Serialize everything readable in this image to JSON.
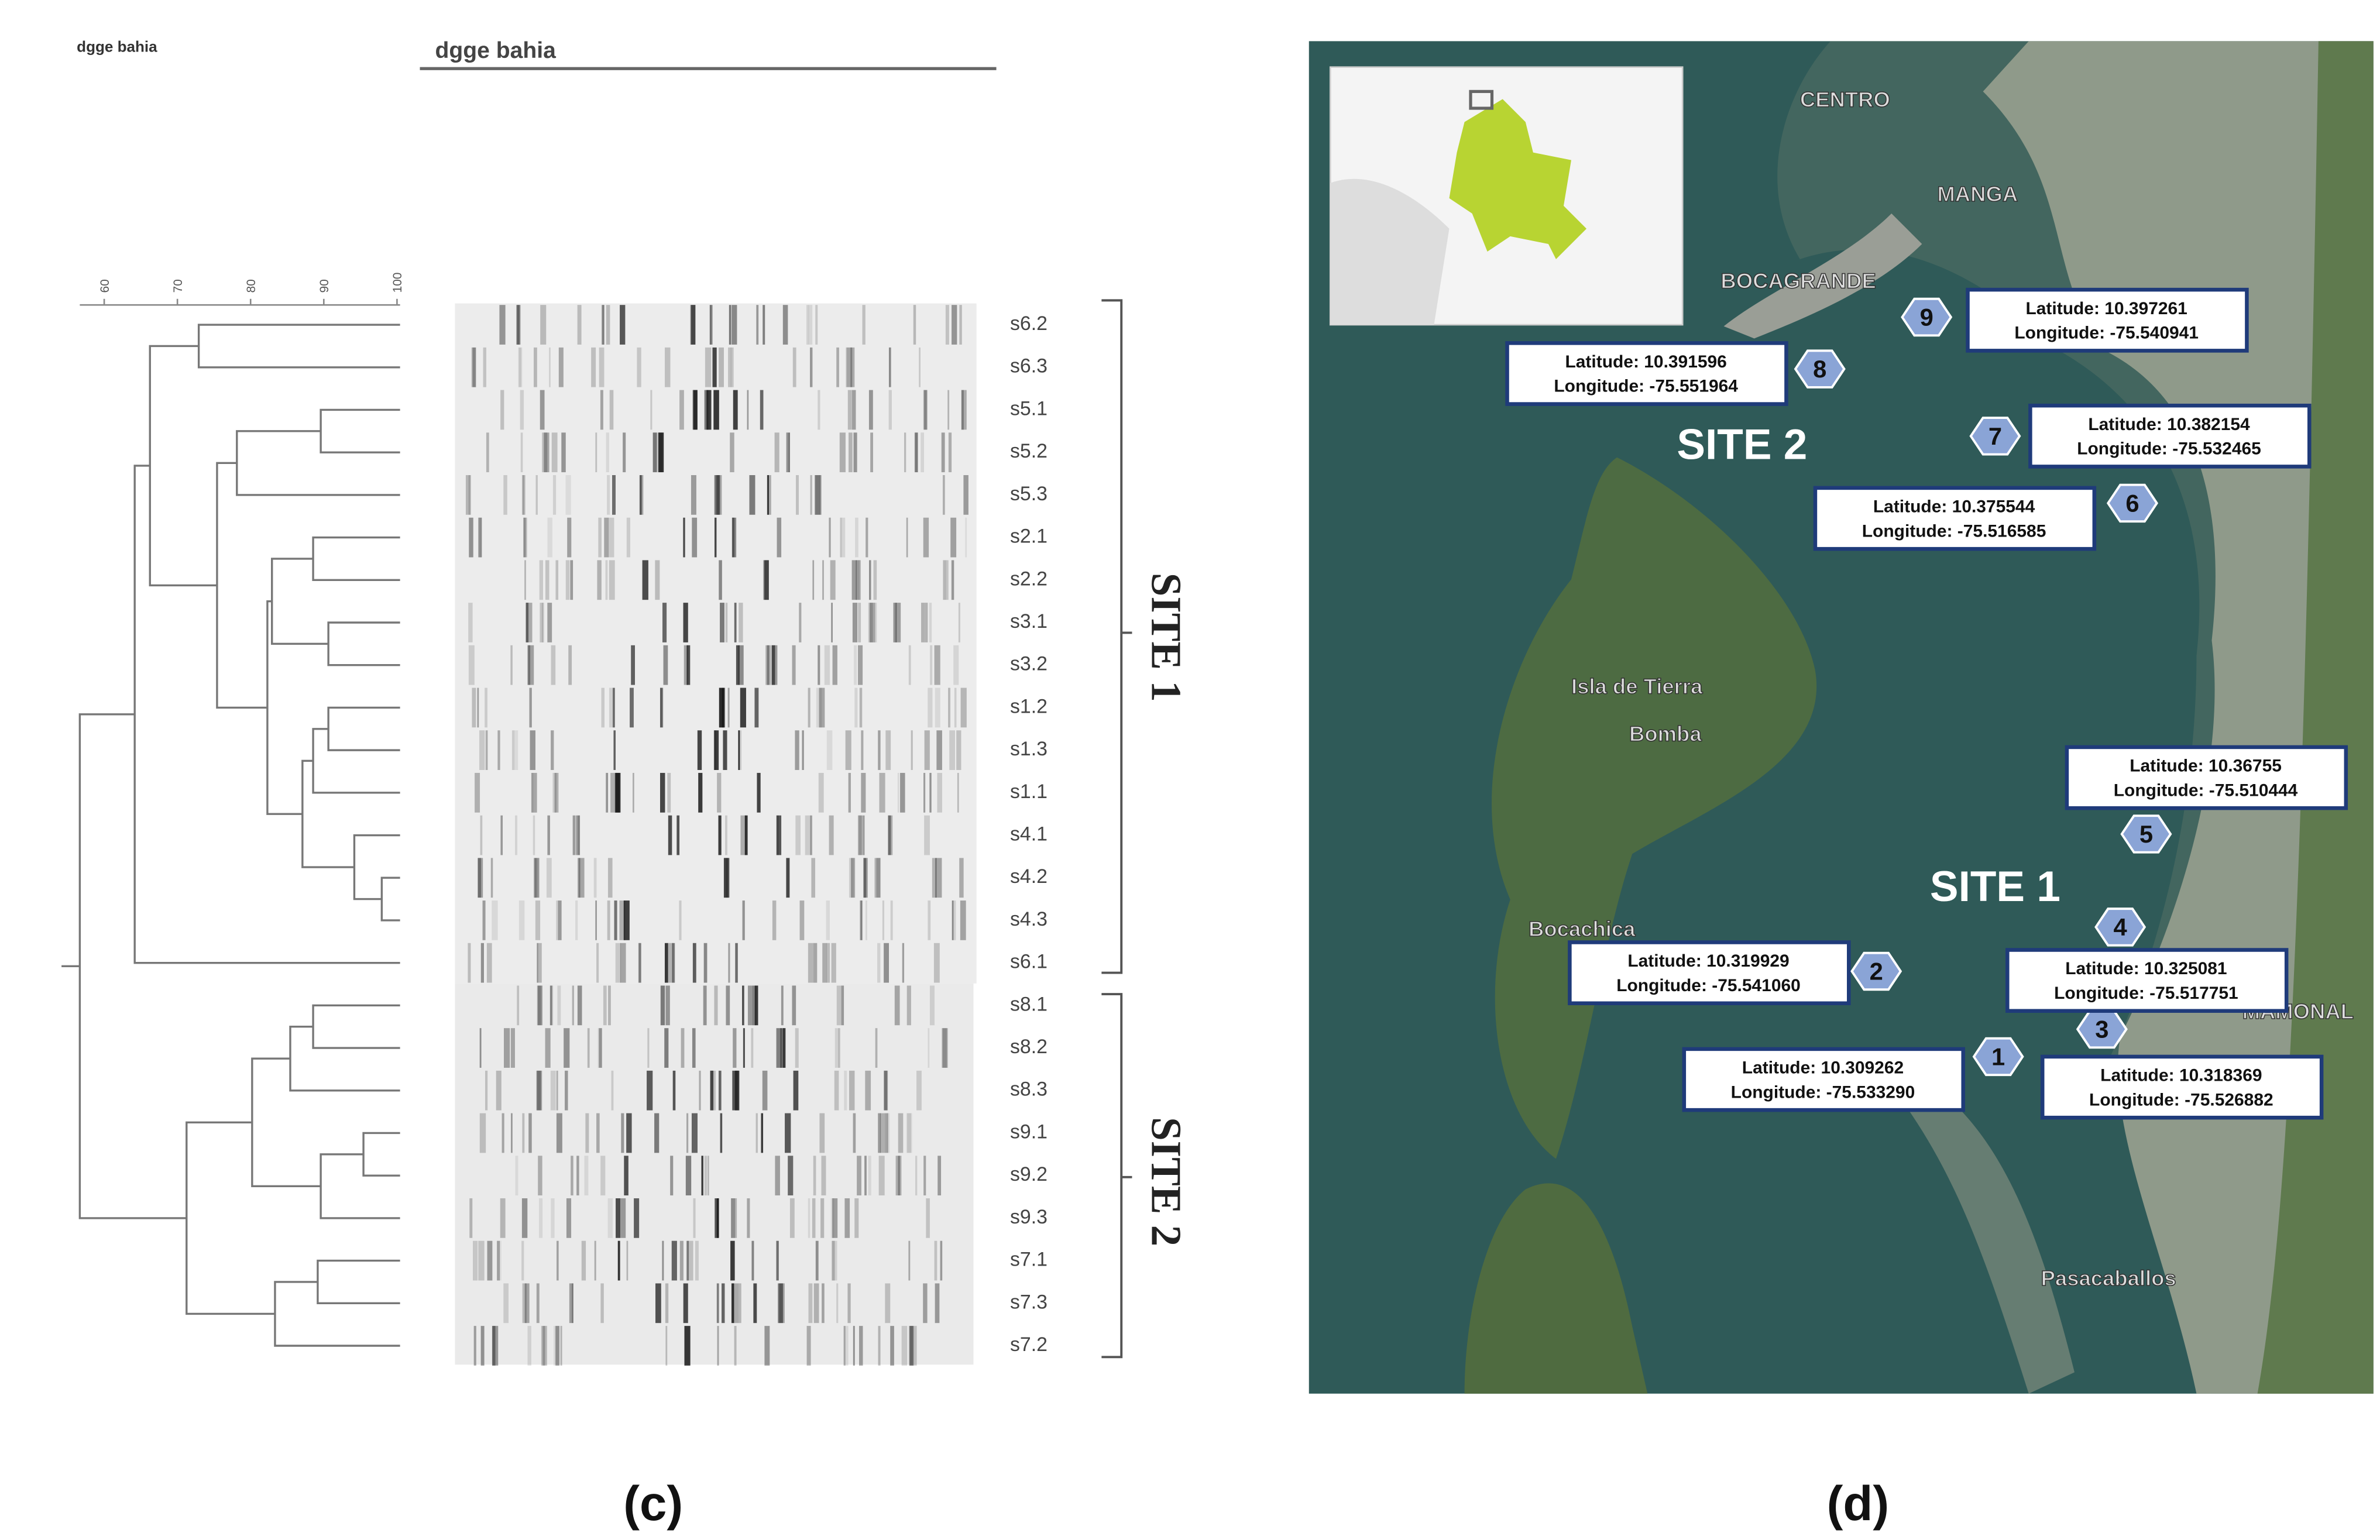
{
  "figure_c": {
    "small_title": "dgge bahia",
    "title": "dgge bahia",
    "scale": [
      60,
      70,
      80,
      90,
      100
    ],
    "lanes": [
      "s6.2",
      "s6.3",
      "s5.1",
      "s5.2",
      "s5.3",
      "s2.1",
      "s2.2",
      "s3.1",
      "s3.2",
      "s1.2",
      "s1.3",
      "s1.1",
      "s4.1",
      "s4.2",
      "s4.3",
      "s6.1",
      "s8.1",
      "s8.2",
      "s8.3",
      "s9.1",
      "s9.2",
      "s9.3",
      "s7.1",
      "s7.3",
      "s7.2"
    ],
    "groups": [
      "SITE 1",
      "SITE 2"
    ],
    "caption": "(c)"
  },
  "figure_d": {
    "places": [
      "CENTRO",
      "MANGA",
      "BOCAGRANDE",
      "Isla de Tierra",
      "Bomba",
      "Bocachica",
      "Pasacaballos",
      "MAMONAL"
    ],
    "sites": [
      "SITE 2",
      "SITE 1"
    ],
    "markers": [
      {
        "label": "1",
        "lat": "Latitude: 10.309262",
        "lon": "Longitude: -75.533290"
      },
      {
        "label": "2",
        "lat": "Latitude: 10.319929",
        "lon": "Longitude: -75.541060"
      },
      {
        "label": "3",
        "lat": "Latitude: 10.318369",
        "lon": "Longitude: -75.526882"
      },
      {
        "label": "4",
        "lat": "Latitude: 10.325081",
        "lon": "Longitude: -75.517751"
      },
      {
        "label": "5",
        "lat": "Latitude: 10.36755",
        "lon": "Longitude: -75.510444"
      },
      {
        "label": "6",
        "lat": "Latitude: 10.375544",
        "lon": "Longitude: -75.516585"
      },
      {
        "label": "7",
        "lat": "Latitude: 10.382154",
        "lon": "Longitude: -75.532465"
      },
      {
        "label": "8",
        "lat": "Latitude: 10.391596",
        "lon": "Longitude: -75.551964"
      },
      {
        "label": "9",
        "lat": "Latitude: 10.397261",
        "lon": "Longitude: -75.540941"
      }
    ],
    "caption": "(d)"
  }
}
